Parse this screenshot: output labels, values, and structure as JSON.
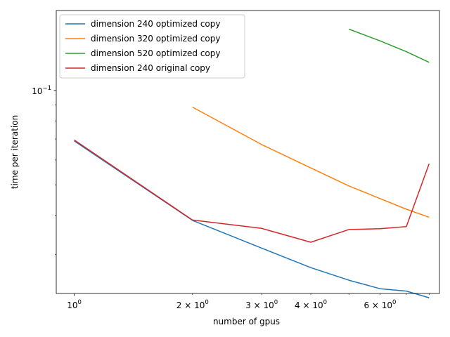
{
  "chart_data": {
    "type": "line",
    "title": "",
    "xlabel": "number of gpus",
    "ylabel": "time per iteration",
    "xscale": "log",
    "yscale": "log",
    "xlim": [
      0.9,
      8.5
    ],
    "ylim": [
      0.0225,
      0.18
    ],
    "grid": false,
    "legend_position": "top-left",
    "x_ticks_major": [
      {
        "value": 1,
        "base": "10",
        "exp": "0"
      }
    ],
    "x_ticks_minor": [
      {
        "value": 2,
        "base": "2 × 10",
        "exp": "0"
      },
      {
        "value": 3,
        "base": "3 × 10",
        "exp": "0"
      },
      {
        "value": 4,
        "base": "4 × 10",
        "exp": "0"
      },
      {
        "value": 5,
        "base": "",
        "exp": ""
      },
      {
        "value": 6,
        "base": "6 × 10",
        "exp": "0"
      },
      {
        "value": 7,
        "base": "",
        "exp": ""
      },
      {
        "value": 8,
        "base": "",
        "exp": ""
      }
    ],
    "y_ticks_major": [
      {
        "value": 0.1,
        "base": "10",
        "exp": "−1"
      }
    ],
    "y_ticks_minor": [
      0.03,
      0.04,
      0.05,
      0.06,
      0.07,
      0.08,
      0.09
    ],
    "series": [
      {
        "name": "dimension 240 optimized copy",
        "color": "#1f77b4",
        "x": [
          1,
          2,
          3,
          4,
          5,
          6,
          7,
          8
        ],
        "y": [
          0.069,
          0.0385,
          0.0314,
          0.0272,
          0.0248,
          0.0233,
          0.0229,
          0.0218
        ]
      },
      {
        "name": "dimension 320 optimized copy",
        "color": "#ff7f0e",
        "x": [
          2,
          3,
          4,
          5,
          6,
          7,
          8
        ],
        "y": [
          0.0885,
          0.0672,
          0.0566,
          0.0496,
          0.0452,
          0.0418,
          0.0394
        ]
      },
      {
        "name": "dimension 520 optimized copy",
        "color": "#2ca02c",
        "x": [
          5,
          6,
          7,
          8
        ],
        "y": [
          0.157,
          0.144,
          0.133,
          0.123
        ]
      },
      {
        "name": "dimension 240 original copy",
        "color": "#d62728",
        "x": [
          1,
          2,
          3,
          4,
          5,
          6,
          7,
          8
        ],
        "y": [
          0.0695,
          0.0386,
          0.0363,
          0.0328,
          0.036,
          0.0362,
          0.0368,
          0.0584
        ]
      }
    ]
  }
}
